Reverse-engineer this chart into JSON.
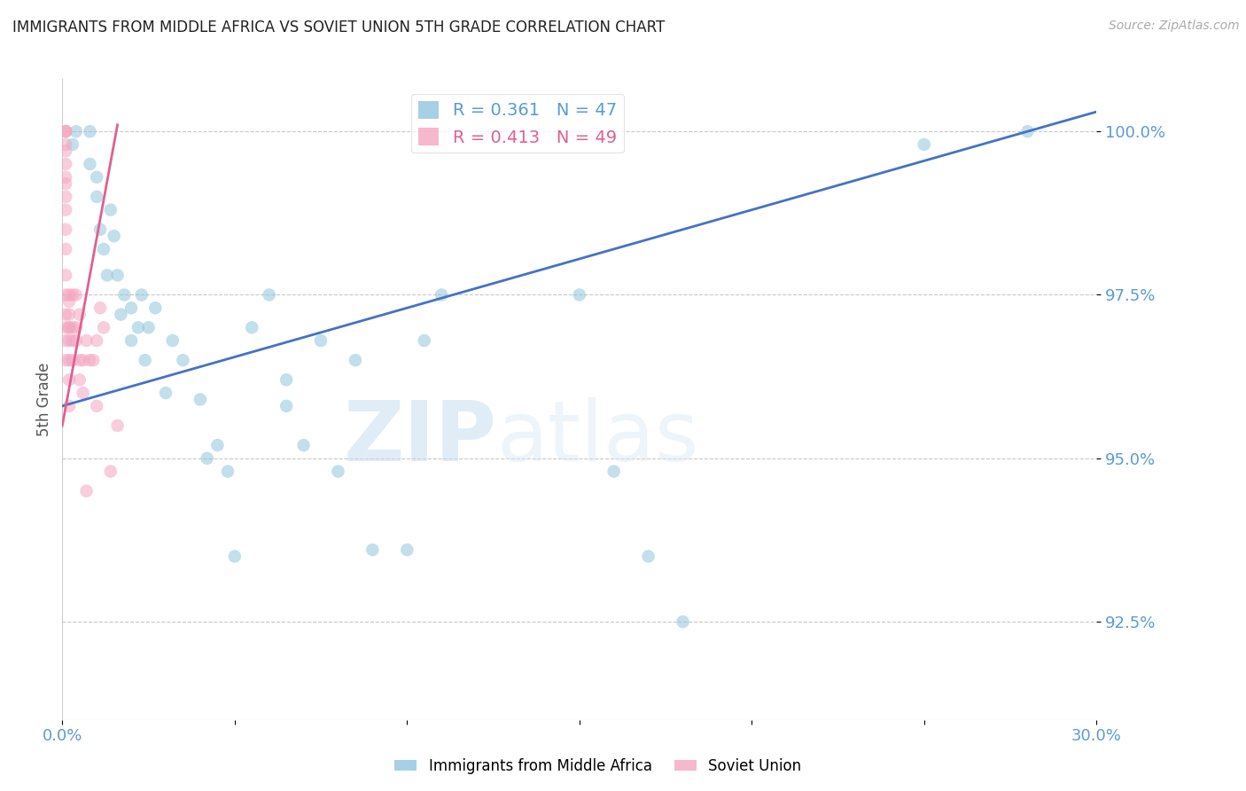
{
  "title": "IMMIGRANTS FROM MIDDLE AFRICA VS SOVIET UNION 5TH GRADE CORRELATION CHART",
  "source": "Source: ZipAtlas.com",
  "ylabel": "5th Grade",
  "x_min": 0.0,
  "x_max": 0.3,
  "y_min": 91.0,
  "y_max": 100.8,
  "x_ticks": [
    0.0,
    0.05,
    0.1,
    0.15,
    0.2,
    0.25,
    0.3
  ],
  "x_tick_labels": [
    "0.0%",
    "",
    "",
    "",
    "",
    "",
    "30.0%"
  ],
  "y_ticks": [
    92.5,
    95.0,
    97.5,
    100.0
  ],
  "y_tick_labels": [
    "92.5%",
    "95.0%",
    "97.5%",
    "100.0%"
  ],
  "legend1_label": "R = 0.361   N = 47",
  "legend2_label": "R = 0.413   N = 49",
  "legend1_color": "#92c5de",
  "legend2_color": "#f4a6c0",
  "watermark_zip": "ZIP",
  "watermark_atlas": "atlas",
  "blue_scatter_x": [
    0.003,
    0.004,
    0.008,
    0.008,
    0.01,
    0.01,
    0.011,
    0.012,
    0.013,
    0.014,
    0.015,
    0.016,
    0.017,
    0.018,
    0.02,
    0.02,
    0.022,
    0.023,
    0.024,
    0.025,
    0.027,
    0.03,
    0.032,
    0.035,
    0.04,
    0.042,
    0.045,
    0.048,
    0.05,
    0.055,
    0.06,
    0.065,
    0.065,
    0.07,
    0.075,
    0.08,
    0.085,
    0.09,
    0.1,
    0.105,
    0.11,
    0.15,
    0.16,
    0.17,
    0.18,
    0.25,
    0.28
  ],
  "blue_scatter_y": [
    99.8,
    100.0,
    100.0,
    99.5,
    99.3,
    99.0,
    98.5,
    98.2,
    97.8,
    98.8,
    98.4,
    97.8,
    97.2,
    97.5,
    96.8,
    97.3,
    97.0,
    97.5,
    96.5,
    97.0,
    97.3,
    96.0,
    96.8,
    96.5,
    95.9,
    95.0,
    95.2,
    94.8,
    93.5,
    97.0,
    97.5,
    95.8,
    96.2,
    95.2,
    96.8,
    94.8,
    96.5,
    93.6,
    93.6,
    96.8,
    97.5,
    97.5,
    94.8,
    93.5,
    92.5,
    99.8,
    100.0
  ],
  "pink_scatter_x": [
    0.001,
    0.001,
    0.001,
    0.001,
    0.001,
    0.001,
    0.001,
    0.001,
    0.001,
    0.001,
    0.001,
    0.001,
    0.001,
    0.001,
    0.001,
    0.001,
    0.001,
    0.001,
    0.002,
    0.002,
    0.002,
    0.002,
    0.002,
    0.002,
    0.002,
    0.002,
    0.002,
    0.003,
    0.003,
    0.003,
    0.003,
    0.004,
    0.004,
    0.004,
    0.005,
    0.005,
    0.005,
    0.006,
    0.006,
    0.007,
    0.007,
    0.008,
    0.009,
    0.01,
    0.01,
    0.011,
    0.012,
    0.014,
    0.016
  ],
  "pink_scatter_y": [
    100.0,
    100.0,
    100.0,
    99.8,
    99.7,
    99.5,
    99.3,
    99.2,
    99.0,
    98.8,
    98.5,
    98.2,
    97.8,
    97.5,
    97.2,
    97.0,
    96.8,
    96.5,
    97.5,
    97.2,
    97.0,
    96.8,
    96.5,
    96.2,
    95.8,
    97.4,
    97.0,
    97.5,
    97.0,
    96.8,
    96.5,
    97.5,
    97.0,
    96.8,
    97.2,
    96.5,
    96.2,
    96.5,
    96.0,
    96.8,
    94.5,
    96.5,
    96.5,
    96.8,
    95.8,
    97.3,
    97.0,
    94.8,
    95.5
  ],
  "blue_line_x": [
    0.0,
    0.3
  ],
  "blue_line_y": [
    95.8,
    100.3
  ],
  "pink_line_x": [
    0.0,
    0.016
  ],
  "pink_line_y": [
    95.5,
    100.1
  ],
  "scatter_alpha": 0.55,
  "scatter_size": 110,
  "title_fontsize": 12,
  "axis_label_color": "#5b9bd5",
  "grid_color": "#c8c8c8",
  "background_color": "#ffffff"
}
